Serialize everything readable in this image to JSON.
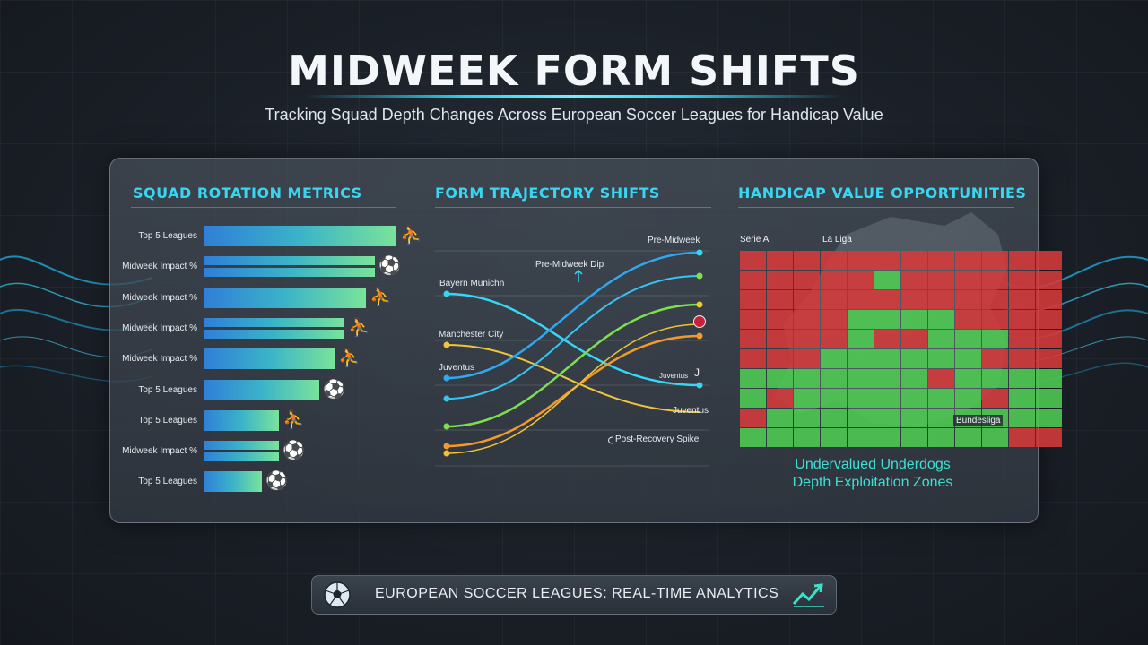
{
  "header": {
    "title": "MIDWEEK FORM SHIFTS",
    "subtitle": "Tracking Squad Depth Changes Across European Soccer Leagues for Handicap Value"
  },
  "sections": {
    "rotation_title": "SQUAD ROTATION METRICS",
    "trajectory_title": "FORM TRAJECTORY SHIFTS",
    "handicap_title": "HANDICAP VALUE OPPORTUNITIES"
  },
  "rotation_bars": [
    {
      "label": "Top 5 Leagues",
      "value": 1.0,
      "twin": false
    },
    {
      "label": "Midweek Impact %",
      "value": 0.89,
      "twin": true
    },
    {
      "label": "Midweek Impact %",
      "value": 0.84,
      "twin": false
    },
    {
      "label": "Midweek Impact %",
      "value": 0.73,
      "twin": true
    },
    {
      "label": "Midweek Impact %",
      "value": 0.68,
      "twin": false
    },
    {
      "label": "Top 5 Leagues",
      "value": 0.6,
      "twin": false
    },
    {
      "label": "Top 5 Leagues",
      "value": 0.39,
      "twin": false
    },
    {
      "label": "Midweek Impact %",
      "value": 0.39,
      "twin": true
    },
    {
      "label": "Top 5 Leagues",
      "value": 0.3,
      "twin": false
    }
  ],
  "trajectory": {
    "labels": {
      "bayern": "Bayern Munichn",
      "manchester": "Manchester City",
      "juventus_left": "Juventus",
      "pre_dip": "Pre-Midweek Dip",
      "pre_midweek": "Pre-Midweek",
      "juventus_right_top": "Juventus",
      "juventus_right_bottom": "Juventus",
      "post_recovery": "Post-Recovery Spike"
    },
    "line_colors": [
      "#36d6f5",
      "#2fa8f0",
      "#f2c43a",
      "#7be04c",
      "#f39a2a",
      "#f0a236"
    ]
  },
  "heatmap": {
    "labels": {
      "serie_a": "Serie A",
      "la_liga": "La Liga",
      "bundesliga": "Bundesliga"
    },
    "note_line1": "Undervalued Underdogs",
    "note_line2": "Depth Exploitation Zones",
    "colors": {
      "red": "#d63a3a",
      "green": "#4fcc52",
      "grey": "#555d66"
    },
    "rows": [
      "RRRRRRRRRRRR",
      "RRRRRGRRRRRR",
      "RRRRRRRRRRRR",
      "RRRRGGGGRRRR",
      "RRRRGRRGGGRR",
      "RRRGGGGGGRRR",
      "GGGGGGGRGGGG",
      "GRGGGGGGGRGG",
      "RGGGGGGGGGGG",
      "GGGGGGGGGGRR"
    ]
  },
  "footer": {
    "text": "EUROPEAN SOCCER LEAGUES: REAL-TIME ANALYTICS"
  }
}
